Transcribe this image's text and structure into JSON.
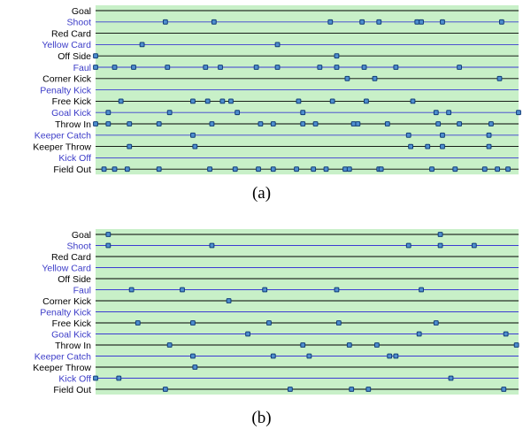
{
  "colors": {
    "plot_background": "#c8f0c8",
    "marker_fill": "#4f8fcf",
    "marker_stroke": "#103c78",
    "label_black": "#000000",
    "label_blue": "#3c3cc8",
    "line_black": "#000000",
    "line_blue": "#3c3cd2"
  },
  "chart_data": [
    {
      "type": "scatter",
      "caption": "(a)",
      "categories": [
        "Goal",
        "Shoot",
        "Red Card",
        "Yellow Card",
        "Off Side",
        "Faul",
        "Corner Kick",
        "Penalty Kick",
        "Free Kick",
        "Goal Kick",
        "Throw In",
        "Keeper Catch",
        "Keeper Throw",
        "Kick Off",
        "Field Out"
      ],
      "category_colors": [
        "black",
        "blue",
        "black",
        "blue",
        "black",
        "blue",
        "black",
        "blue",
        "black",
        "blue",
        "black",
        "blue",
        "black",
        "blue",
        "black"
      ],
      "xlim": [
        0,
        100
      ],
      "series": [
        {
          "category": "Goal",
          "x": []
        },
        {
          "category": "Shoot",
          "x": [
            16.5,
            28,
            55.5,
            63,
            67,
            76,
            77,
            82,
            96
          ]
        },
        {
          "category": "Red Card",
          "x": []
        },
        {
          "category": "Yellow Card",
          "x": [
            11,
            43
          ]
        },
        {
          "category": "Off Side",
          "x": [
            0,
            57
          ]
        },
        {
          "category": "Faul",
          "x": [
            0,
            4.5,
            9,
            17,
            26,
            29.5,
            38,
            43,
            53,
            57,
            63.5,
            71,
            86
          ]
        },
        {
          "category": "Corner Kick",
          "x": [
            59.5,
            66,
            95.5
          ]
        },
        {
          "category": "Penalty Kick",
          "x": []
        },
        {
          "category": "Free Kick",
          "x": [
            6,
            23,
            26.5,
            30,
            32,
            48,
            56,
            64,
            75
          ]
        },
        {
          "category": "Goal Kick",
          "x": [
            3,
            17.5,
            33.5,
            49,
            80.5,
            83.5,
            100
          ]
        },
        {
          "category": "Throw In",
          "x": [
            0,
            3,
            8,
            15,
            27.5,
            39,
            42,
            49,
            52,
            61,
            62,
            69,
            81,
            86,
            93.5
          ]
        },
        {
          "category": "Keeper Catch",
          "x": [
            23,
            74,
            82,
            93
          ]
        },
        {
          "category": "Keeper Throw",
          "x": [
            8,
            23.5,
            74.5,
            78.5,
            82,
            93
          ]
        },
        {
          "category": "Kick Off",
          "x": []
        },
        {
          "category": "Field Out",
          "x": [
            2,
            4.5,
            7.5,
            15,
            27,
            33,
            38.5,
            42,
            47.5,
            51.5,
            54.5,
            59,
            60,
            67,
            67.5,
            79.5,
            85,
            92,
            95,
            97.5
          ]
        }
      ]
    },
    {
      "type": "scatter",
      "caption": "(b)",
      "categories": [
        "Goal",
        "Shoot",
        "Red Card",
        "Yellow Card",
        "Off Side",
        "Faul",
        "Corner Kick",
        "Penalty Kick",
        "Free Kick",
        "Goal Kick",
        "Throw In",
        "Keeper Catch",
        "Keeper Throw",
        "Kick Off",
        "Field Out"
      ],
      "category_colors": [
        "black",
        "blue",
        "black",
        "blue",
        "black",
        "blue",
        "black",
        "blue",
        "black",
        "blue",
        "black",
        "blue",
        "black",
        "blue",
        "black"
      ],
      "xlim": [
        0,
        100
      ],
      "series": [
        {
          "category": "Goal",
          "x": [
            3,
            81.5
          ]
        },
        {
          "category": "Shoot",
          "x": [
            3,
            27.5,
            74,
            81.5,
            89.5
          ]
        },
        {
          "category": "Red Card",
          "x": []
        },
        {
          "category": "Yellow Card",
          "x": []
        },
        {
          "category": "Off Side",
          "x": []
        },
        {
          "category": "Faul",
          "x": [
            8.5,
            20.5,
            40,
            57,
            77
          ]
        },
        {
          "category": "Corner Kick",
          "x": [
            31.5
          ]
        },
        {
          "category": "Penalty Kick",
          "x": []
        },
        {
          "category": "Free Kick",
          "x": [
            10,
            23,
            41,
            57.5,
            80.5
          ]
        },
        {
          "category": "Goal Kick",
          "x": [
            36,
            76.5,
            97
          ]
        },
        {
          "category": "Throw In",
          "x": [
            17.5,
            49,
            60,
            66.5,
            99.5
          ]
        },
        {
          "category": "Keeper Catch",
          "x": [
            23,
            42,
            50.5,
            69.5,
            71
          ]
        },
        {
          "category": "Keeper Throw",
          "x": [
            23.5
          ]
        },
        {
          "category": "Kick Off",
          "x": [
            0,
            5.5,
            84
          ]
        },
        {
          "category": "Field Out",
          "x": [
            16.5,
            46,
            60.5,
            64.5,
            96.5
          ]
        }
      ]
    }
  ]
}
